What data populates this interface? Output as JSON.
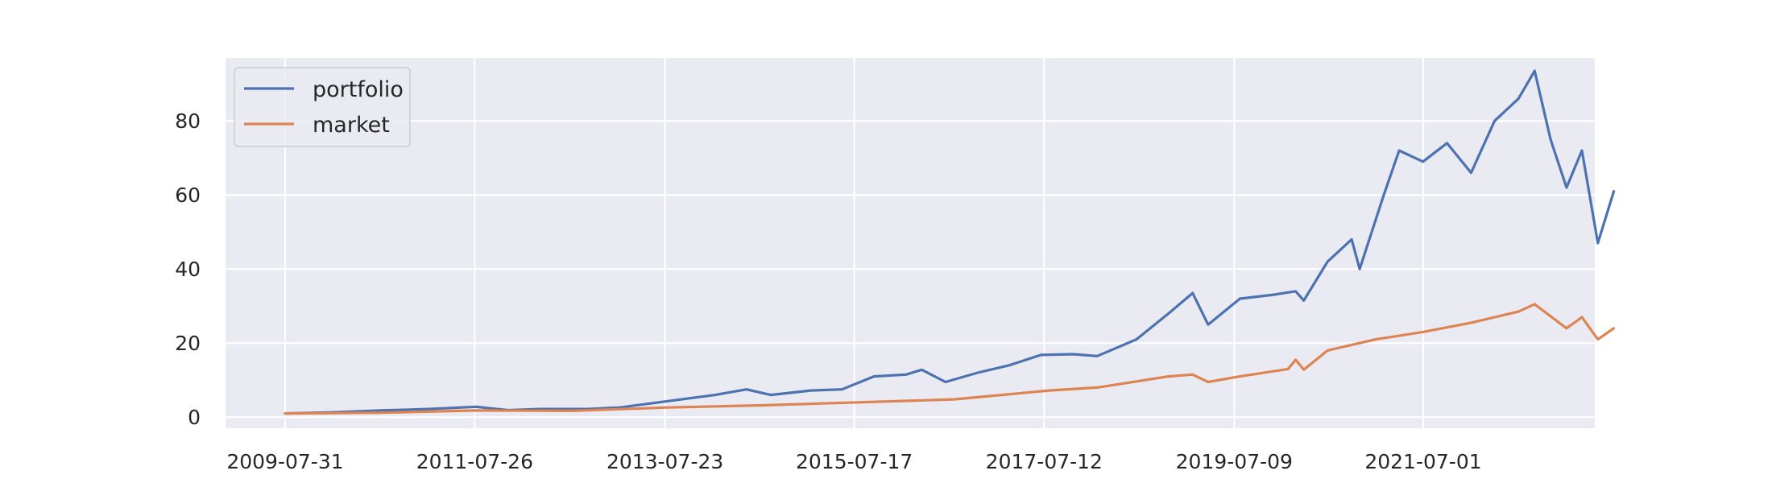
{
  "chart_data": {
    "type": "line",
    "title": "",
    "xlabel": "",
    "ylabel": "",
    "x_axis": {
      "type": "date",
      "range": [
        "2009-07-31",
        "2023-06-30"
      ],
      "ticks": [
        "2009-07-31",
        "2011-07-26",
        "2013-07-23",
        "2015-07-17",
        "2017-07-12",
        "2019-07-09",
        "2021-07-01"
      ]
    },
    "y_axis": {
      "range": [
        -3,
        97
      ],
      "ticks": [
        0,
        20,
        40,
        60,
        80
      ]
    },
    "grid": true,
    "legend": {
      "position": "top-left"
    },
    "series": [
      {
        "name": "portfolio",
        "color": "#4c72b0",
        "points": [
          [
            "2009-07-31",
            1.0
          ],
          [
            "2010-01-31",
            1.3
          ],
          [
            "2010-07-31",
            1.8
          ],
          [
            "2011-01-31",
            2.2
          ],
          [
            "2011-07-31",
            2.8
          ],
          [
            "2011-11-30",
            1.9
          ],
          [
            "2012-03-31",
            2.2
          ],
          [
            "2012-09-30",
            2.2
          ],
          [
            "2013-01-31",
            2.6
          ],
          [
            "2013-07-31",
            4.3
          ],
          [
            "2014-01-31",
            6.0
          ],
          [
            "2014-05-31",
            7.5
          ],
          [
            "2014-08-31",
            6.0
          ],
          [
            "2015-01-31",
            7.2
          ],
          [
            "2015-05-31",
            7.5
          ],
          [
            "2015-09-30",
            11.0
          ],
          [
            "2016-01-31",
            11.5
          ],
          [
            "2016-03-31",
            12.8
          ],
          [
            "2016-06-30",
            9.5
          ],
          [
            "2016-10-31",
            12.0
          ],
          [
            "2017-02-28",
            14.0
          ],
          [
            "2017-06-30",
            16.8
          ],
          [
            "2017-10-31",
            17.0
          ],
          [
            "2018-01-31",
            16.5
          ],
          [
            "2018-06-30",
            21.0
          ],
          [
            "2018-10-31",
            28.0
          ],
          [
            "2019-01-31",
            33.5
          ],
          [
            "2019-03-31",
            25.0
          ],
          [
            "2019-07-31",
            32.0
          ],
          [
            "2019-11-30",
            33.0
          ],
          [
            "2020-02-29",
            34.0
          ],
          [
            "2020-03-31",
            31.5
          ],
          [
            "2020-06-30",
            42.0
          ],
          [
            "2020-09-30",
            48.0
          ],
          [
            "2020-10-31",
            40.0
          ],
          [
            "2021-01-31",
            60.0
          ],
          [
            "2021-03-31",
            72.0
          ],
          [
            "2021-06-30",
            69.0
          ],
          [
            "2021-09-30",
            74.0
          ],
          [
            "2021-12-31",
            66.0
          ],
          [
            "2022-03-31",
            80.0
          ],
          [
            "2022-06-30",
            86.0
          ],
          [
            "2022-08-31",
            93.5
          ],
          [
            "2022-10-31",
            75.0
          ],
          [
            "2022-12-31",
            62.0
          ],
          [
            "2023-02-28",
            72.0
          ],
          [
            "2023-04-30",
            47.0
          ],
          [
            "2023-06-30",
            61.0
          ]
        ]
      },
      {
        "name": "market",
        "color": "#dd8452",
        "points": [
          [
            "2009-07-31",
            1.0
          ],
          [
            "2010-07-31",
            1.2
          ],
          [
            "2011-07-31",
            1.8
          ],
          [
            "2012-07-31",
            1.7
          ],
          [
            "2013-07-31",
            2.6
          ],
          [
            "2014-07-31",
            3.2
          ],
          [
            "2015-07-31",
            4.0
          ],
          [
            "2016-01-31",
            4.4
          ],
          [
            "2016-07-31",
            4.8
          ],
          [
            "2017-01-31",
            6.0
          ],
          [
            "2017-07-31",
            7.2
          ],
          [
            "2018-01-31",
            8.0
          ],
          [
            "2018-10-31",
            11.0
          ],
          [
            "2019-01-31",
            11.5
          ],
          [
            "2019-03-31",
            9.5
          ],
          [
            "2019-07-31",
            11.0
          ],
          [
            "2020-01-31",
            13.0
          ],
          [
            "2020-02-29",
            15.5
          ],
          [
            "2020-03-31",
            12.8
          ],
          [
            "2020-06-30",
            18.0
          ],
          [
            "2020-12-31",
            21.0
          ],
          [
            "2021-06-30",
            23.0
          ],
          [
            "2021-12-31",
            25.5
          ],
          [
            "2022-06-30",
            28.5
          ],
          [
            "2022-08-31",
            30.5
          ],
          [
            "2022-12-31",
            24.0
          ],
          [
            "2023-02-28",
            27.0
          ],
          [
            "2023-04-30",
            21.0
          ],
          [
            "2023-06-30",
            24.0
          ]
        ]
      }
    ]
  }
}
